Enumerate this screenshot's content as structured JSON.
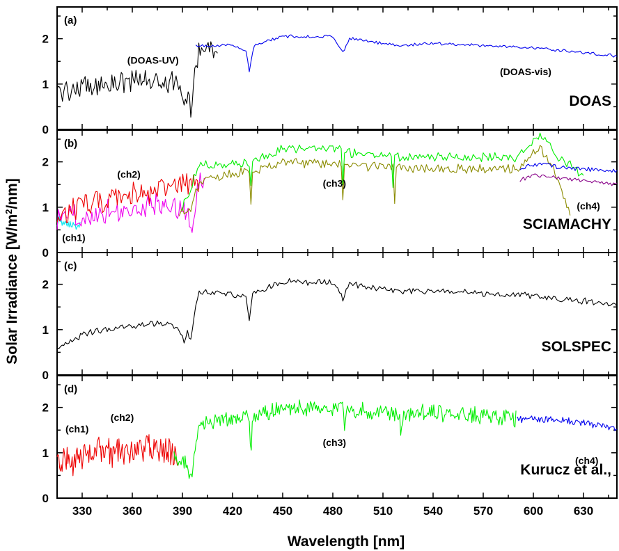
{
  "chart_data": {
    "type": "line",
    "xlabel": "Wavelength [nm]",
    "ylabel": "Solar Irradiance [W/m²/nm]",
    "ylabel_parts": {
      "pre": "Solar Irradiance [W/m",
      "sup": "2",
      "post": "/nm]"
    },
    "xlim": [
      315,
      650
    ],
    "x_ticks": [
      330,
      360,
      390,
      420,
      450,
      480,
      510,
      540,
      570,
      600,
      630
    ],
    "ylim": [
      0,
      2.7
    ],
    "y_ticks": [
      0,
      1,
      2
    ],
    "grid": false,
    "panels": [
      {
        "letter": "(a)",
        "title": "DOAS",
        "annotations": [
          {
            "text": "(DOAS-UV)",
            "x": 357,
            "y": 1.45
          },
          {
            "text": "(DOAS-vis)",
            "x": 580,
            "y": 1.2
          }
        ],
        "series": [
          {
            "name": "DOAS-UV",
            "color": "#000000",
            "x_range": [
              315,
              411
            ],
            "step": 0.8,
            "noise": 0.22,
            "key_x": [
              315,
              335,
              355,
              375,
              385,
              389,
              391,
              393,
              395,
              397,
              400,
              411
            ],
            "key_y": [
              0.85,
              0.95,
              1.05,
              1.1,
              1.0,
              0.9,
              0.45,
              0.85,
              0.5,
              1.2,
              1.8,
              1.85
            ]
          },
          {
            "name": "DOAS-vis",
            "color": "#0000ee",
            "x_range": [
              398,
              650
            ],
            "step": 1.0,
            "noise": 0.03,
            "key_x": [
              398,
              420,
              428,
              430,
              433,
              450,
              480,
              486,
              490,
              520,
              540,
              600,
              650
            ],
            "key_y": [
              1.85,
              1.85,
              1.75,
              1.3,
              1.85,
              2.05,
              2.05,
              1.7,
              2.0,
              1.85,
              1.9,
              1.8,
              1.62
            ]
          }
        ]
      },
      {
        "letter": "(b)",
        "title": "SCIAMACHY",
        "annotations": [
          {
            "text": "(ch2)",
            "x": 351,
            "y": 1.65
          },
          {
            "text": "(ch1)",
            "x": 318,
            "y": 0.25
          },
          {
            "text": "(ch3)",
            "x": 474,
            "y": 1.45
          },
          {
            "text": "(ch4)",
            "x": 626,
            "y": 0.95
          }
        ],
        "series": [
          {
            "name": "ch1",
            "color": "#00e5ee",
            "x_range": [
              315,
              329
            ],
            "step": 0.6,
            "noise": 0.1,
            "key_x": [
              315,
              322,
              329
            ],
            "key_y": [
              0.7,
              0.65,
              0.6
            ]
          },
          {
            "name": "ch2-magenta",
            "color": "#ee00ee",
            "x_range": [
              315,
              404
            ],
            "step": 0.8,
            "noise": 0.25,
            "key_x": [
              315,
              340,
              370,
              385,
              392,
              395,
              400,
              404
            ],
            "key_y": [
              0.75,
              0.9,
              1.0,
              1.1,
              0.9,
              0.5,
              1.6,
              1.4
            ]
          },
          {
            "name": "ch2-red",
            "color": "#ee0000",
            "x_range": [
              315,
              400
            ],
            "step": 0.8,
            "noise": 0.25,
            "key_x": [
              315,
              340,
              370,
              390,
              400
            ],
            "key_y": [
              0.85,
              1.15,
              1.3,
              1.5,
              1.6
            ]
          },
          {
            "name": "ch3-olive",
            "color": "#8b8b00",
            "x_range": [
              388,
              622
            ],
            "step": 1.0,
            "noise": 0.09,
            "key_x": [
              388,
              395,
              400,
              430,
              431,
              432,
              450,
              480,
              485,
              486,
              487,
              510,
              516,
              517,
              518,
              540,
              590,
              604,
              612,
              622
            ],
            "key_y": [
              0.9,
              0.9,
              1.6,
              1.8,
              1.0,
              1.8,
              2.0,
              1.95,
              1.95,
              1.2,
              1.9,
              1.9,
              1.9,
              1.15,
              1.85,
              1.85,
              1.85,
              2.3,
              1.8,
              0.9
            ]
          },
          {
            "name": "ch3-green",
            "color": "#00ee00",
            "x_range": [
              390,
              630
            ],
            "step": 1.0,
            "noise": 0.09,
            "key_x": [
              390,
              400,
              430,
              431,
              432,
              450,
              480,
              485,
              486,
              487,
              515,
              516,
              517,
              540,
              590,
              604,
              615,
              630
            ],
            "key_y": [
              1.0,
              1.9,
              2.0,
              1.5,
              2.0,
              2.3,
              2.3,
              2.25,
              1.55,
              2.2,
              2.15,
              1.5,
              2.1,
              2.1,
              2.1,
              2.6,
              2.1,
              1.7
            ]
          },
          {
            "name": "ch4-blue",
            "color": "#0000ee",
            "x_range": [
              592,
              650
            ],
            "step": 1.0,
            "noise": 0.04,
            "key_x": [
              592,
              600,
              625,
              650
            ],
            "key_y": [
              1.85,
              1.95,
              1.85,
              1.8
            ]
          },
          {
            "name": "ch4-purple",
            "color": "#880088",
            "x_range": [
              592,
              650
            ],
            "step": 1.0,
            "noise": 0.04,
            "key_x": [
              592,
              600,
              625,
              650
            ],
            "key_y": [
              1.6,
              1.7,
              1.6,
              1.5
            ]
          }
        ]
      },
      {
        "letter": "(c)",
        "title": "SOLSPEC",
        "annotations": [],
        "series": [
          {
            "name": "SOLSPEC",
            "color": "#000000",
            "x_range": [
              315,
              650
            ],
            "step": 1.0,
            "noise": 0.06,
            "key_x": [
              315,
              335,
              355,
              375,
              385,
              389,
              391,
              393,
              395,
              397,
              400,
              428,
              430,
              432,
              450,
              480,
              486,
              490,
              520,
              540,
              600,
              650
            ],
            "key_y": [
              0.6,
              0.95,
              1.05,
              1.15,
              1.05,
              0.95,
              0.7,
              1.0,
              0.75,
              1.3,
              1.85,
              1.75,
              1.25,
              1.8,
              2.05,
              2.05,
              1.7,
              2.0,
              1.85,
              1.85,
              1.75,
              1.55
            ]
          }
        ]
      },
      {
        "letter": "(d)",
        "title": "Kurucz et al.,",
        "annotations": [
          {
            "text": "(ch1)",
            "x": 320,
            "y": 1.45
          },
          {
            "text": "(ch2)",
            "x": 347,
            "y": 1.7
          },
          {
            "text": "(ch3)",
            "x": 474,
            "y": 1.15
          },
          {
            "text": "(ch4)",
            "x": 625,
            "y": 0.75
          }
        ],
        "series": [
          {
            "name": "ch1-ch2",
            "color": "#ee0000",
            "x_range": [
              315,
              387
            ],
            "step": 0.5,
            "noise": 0.28,
            "key_x": [
              315,
              340,
              360,
              380,
              387
            ],
            "key_y": [
              0.75,
              1.0,
              1.05,
              1.1,
              0.9
            ]
          },
          {
            "name": "ch3",
            "color": "#00ee00",
            "x_range": [
              385,
              590
            ],
            "step": 0.6,
            "noise": 0.16,
            "key_x": [
              385,
              392,
              395,
              397,
              400,
              430,
              431,
              432,
              450,
              480,
              486,
              487,
              488,
              520,
              521,
              522,
              540,
              590
            ],
            "key_y": [
              0.9,
              0.8,
              0.3,
              1.0,
              1.6,
              1.8,
              1.0,
              1.8,
              2.0,
              2.0,
              2.0,
              1.35,
              1.95,
              1.85,
              1.3,
              1.85,
              1.9,
              1.75
            ]
          },
          {
            "name": "ch4",
            "color": "#0000ee",
            "x_range": [
              590,
              650
            ],
            "step": 0.6,
            "noise": 0.07,
            "key_x": [
              590,
              620,
              650
            ],
            "key_y": [
              1.75,
              1.7,
              1.55
            ]
          }
        ]
      }
    ]
  }
}
